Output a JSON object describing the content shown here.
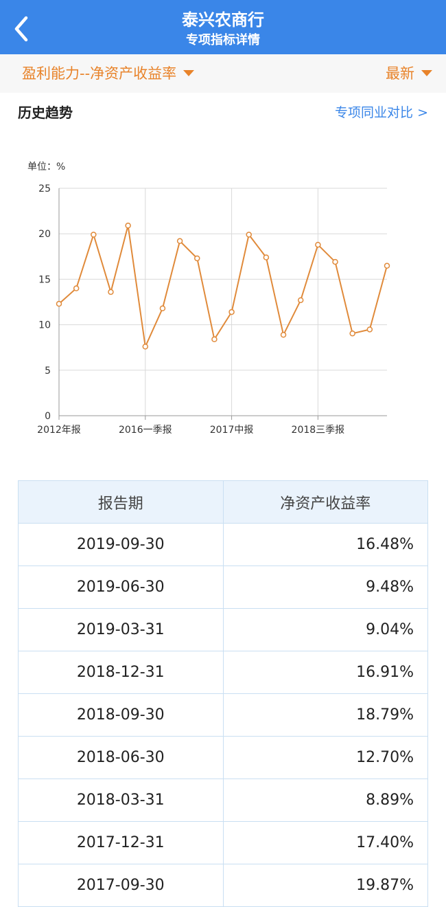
{
  "header": {
    "title": "泰兴农商行",
    "subtitle": "专项指标详情"
  },
  "filter": {
    "indicator": "盈利能力--净资产收益率",
    "period": "最新"
  },
  "section": {
    "title": "历史趋势",
    "compare_link": "专项同业对比 >"
  },
  "colors": {
    "header_bg": "#3a86e8",
    "accent": "#e8832a",
    "link": "#3a86e8"
  },
  "chart_data": {
    "type": "line",
    "unit_label": "单位：%",
    "ylim": [
      0,
      25
    ],
    "y_ticks": [
      "0",
      "5",
      "10",
      "15",
      "20",
      "25"
    ],
    "x_tick_labels": [
      "2012年报",
      "2016一季报",
      "2017中报",
      "2018三季报"
    ],
    "x_tick_indices": [
      0,
      5,
      10,
      15
    ],
    "grid": true,
    "values": [
      12.3,
      14.0,
      19.9,
      13.6,
      20.9,
      7.6,
      11.8,
      19.2,
      17.3,
      8.4,
      11.4,
      19.9,
      17.4,
      8.89,
      12.7,
      18.79,
      16.91,
      9.04,
      9.48,
      16.48
    ],
    "line_color": "#e08a3a"
  },
  "table": {
    "headers": [
      "报告期",
      "净资产收益率"
    ],
    "rows": [
      {
        "period": "2019-09-30",
        "value": "16.48%"
      },
      {
        "period": "2019-06-30",
        "value": "9.48%"
      },
      {
        "period": "2019-03-31",
        "value": "9.04%"
      },
      {
        "period": "2018-12-31",
        "value": "16.91%"
      },
      {
        "period": "2018-09-30",
        "value": "18.79%"
      },
      {
        "period": "2018-06-30",
        "value": "12.70%"
      },
      {
        "period": "2018-03-31",
        "value": "8.89%"
      },
      {
        "period": "2017-12-31",
        "value": "17.40%"
      },
      {
        "period": "2017-09-30",
        "value": "19.87%"
      }
    ]
  }
}
